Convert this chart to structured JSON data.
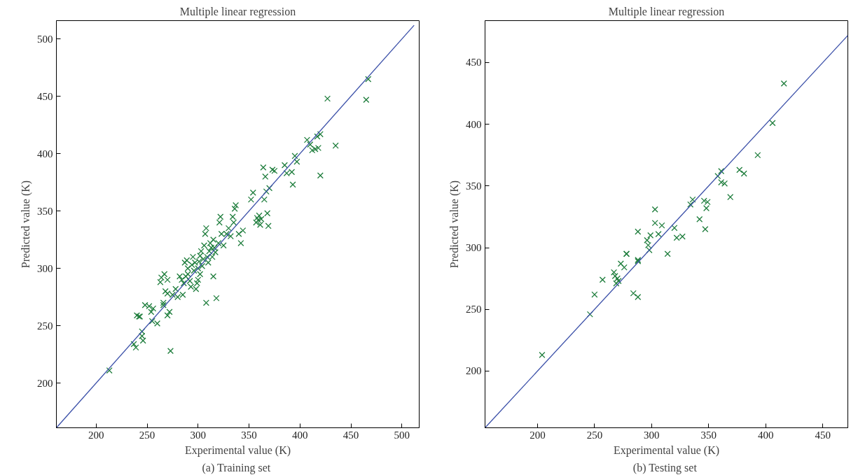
{
  "chart_data": [
    {
      "type": "scatter",
      "title": "Multiple linear regression",
      "xlabel": "Experimental value (K)",
      "ylabel": "Predicted value (K)",
      "annotations": [
        "(a)  Training set"
      ],
      "xlim": [
        161,
        517
      ],
      "ylim": [
        161,
        516
      ],
      "xticks": [
        200,
        250,
        300,
        350,
        400,
        450,
        500
      ],
      "yticks": [
        200,
        250,
        300,
        350,
        400,
        450,
        500
      ],
      "grid": false,
      "marker": "cross",
      "series": [
        {
          "color": "#1e7d3c",
          "x": [
            213,
            237,
            239,
            240,
            242,
            243,
            245,
            245,
            246,
            248,
            252,
            254,
            256,
            255,
            260,
            264,
            263,
            267,
            270,
            266,
            266,
            268,
            270,
            272,
            270,
            273,
            275,
            278,
            280,
            282,
            284,
            285,
            286,
            288,
            287,
            289,
            290,
            290,
            292,
            293,
            294,
            295,
            296,
            297,
            298,
            299,
            300,
            300,
            301,
            302,
            302,
            303,
            304,
            305,
            306,
            307,
            308,
            308,
            309,
            310,
            311,
            312,
            313,
            314,
            315,
            315,
            316,
            317,
            318,
            320,
            321,
            322,
            323,
            325,
            328,
            330,
            332,
            334,
            335,
            336,
            337,
            340,
            342,
            344,
            352,
            354,
            357,
            358,
            359,
            360,
            361,
            362,
            365,
            364,
            366,
            367,
            368,
            369,
            370,
            373,
            375,
            385,
            387,
            392,
            393,
            395,
            397,
            407,
            410,
            412,
            415,
            418,
            417,
            420,
            420,
            427,
            435,
            465,
            467
          ],
          "values": [
            211,
            234,
            231,
            259,
            258,
            258,
            245,
            241,
            237,
            268,
            267,
            262,
            265,
            254,
            252,
            292,
            288,
            295,
            290,
            270,
            268,
            280,
            278,
            262,
            259,
            228,
            277,
            282,
            275,
            293,
            290,
            277,
            287,
            293,
            305,
            307,
            300,
            295,
            289,
            284,
            303,
            310,
            298,
            305,
            282,
            287,
            290,
            300,
            306,
            295,
            311,
            315,
            302,
            308,
            320,
            330,
            270,
            335,
            310,
            305,
            315,
            322,
            318,
            310,
            325,
            293,
            318,
            314,
            274,
            322,
            340,
            345,
            330,
            320,
            330,
            335,
            328,
            345,
            340,
            352,
            355,
            330,
            322,
            333,
            360,
            366,
            340,
            344,
            342,
            346,
            338,
            343,
            360,
            388,
            380,
            367,
            348,
            337,
            370,
            386,
            385,
            390,
            383,
            384,
            373,
            398,
            393,
            412,
            408,
            403,
            404,
            405,
            415,
            381,
            417,
            448,
            407,
            447,
            465
          ]
        },
        {
          "type": "line",
          "color": "#3a4fa8",
          "marker": "none",
          "x": [
            161,
            512
          ],
          "values": [
            161,
            512
          ]
        }
      ]
    },
    {
      "type": "scatter",
      "title": "Multiple linear regression",
      "xlabel": "Experimental value (K)",
      "ylabel": "Predicted value (K)",
      "annotations": [
        "(b)  Testing set"
      ],
      "xlim": [
        154,
        472
      ],
      "ylim": [
        154,
        484
      ],
      "xticks": [
        200,
        250,
        300,
        350,
        400,
        450
      ],
      "yticks": [
        200,
        250,
        300,
        350,
        400,
        450
      ],
      "grid": false,
      "marker": "cross",
      "series": [
        {
          "color": "#1e7d3c",
          "x": [
            416,
            406,
            393,
            377,
            381,
            369,
            361,
            358,
            361,
            364,
            336,
            334,
            346,
            349,
            348,
            342,
            347,
            303,
            303,
            288,
            309,
            306,
            320,
            322,
            327,
            314,
            299,
            296,
            298,
            278,
            288,
            204,
            246,
            250,
            257,
            267,
            268,
            270,
            271,
            269,
            273,
            278,
            276,
            288,
            284,
            288,
            297
          ],
          "values": [
            433,
            401,
            375,
            363,
            360,
            341,
            362,
            358,
            353,
            352,
            339,
            335,
            338,
            337,
            332,
            323,
            315,
            331,
            320,
            313,
            318,
            311,
            316,
            308,
            309,
            295,
            310,
            306,
            298,
            295,
            289,
            213,
            246,
            262,
            274,
            280,
            277,
            275,
            273,
            271,
            287,
            295,
            284,
            290,
            263,
            260,
            302
          ]
        },
        {
          "type": "line",
          "color": "#3a4fa8",
          "marker": "none",
          "x": [
            154,
            472
          ],
          "values": [
            154,
            472
          ]
        }
      ]
    }
  ]
}
